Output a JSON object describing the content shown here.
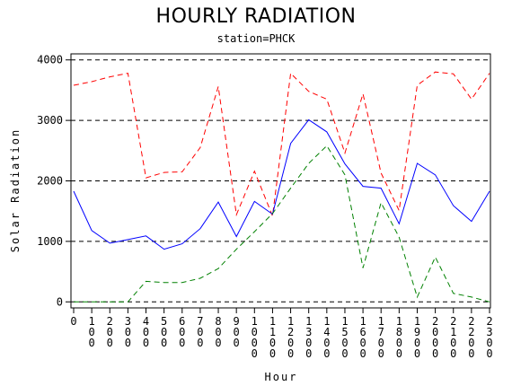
{
  "chart_data": {
    "type": "line",
    "title": "HOURLY RADIATION",
    "subtitle": "station=PHCK",
    "xlabel": "Hour",
    "ylabel": "Solar Radiation",
    "x": [
      0,
      100,
      200,
      300,
      400,
      500,
      600,
      700,
      800,
      900,
      1000,
      1100,
      1200,
      1300,
      1400,
      1500,
      1600,
      1700,
      1800,
      1900,
      2000,
      2100,
      2200,
      2300
    ],
    "x_tick_labels": [
      "0",
      "100",
      "200",
      "300",
      "400",
      "500",
      "600",
      "700",
      "800",
      "900",
      "1000",
      "1100",
      "1200",
      "1300",
      "1400",
      "1500",
      "1600",
      "1700",
      "1800",
      "1900",
      "2000",
      "2100",
      "2200",
      "2300"
    ],
    "yticks": [
      0,
      1000,
      2000,
      3000,
      4000
    ],
    "ylim": [
      -100,
      4100
    ],
    "xlim": [
      0,
      2300
    ],
    "grid": "horizontal dashed",
    "legend": "none",
    "series": [
      {
        "color": "#ff0000",
        "dash": "dashed",
        "values": [
          3580,
          3640,
          3720,
          3780,
          2050,
          2140,
          2150,
          2550,
          3560,
          1440,
          2160,
          1420,
          3780,
          3480,
          3350,
          2460,
          3440,
          2130,
          1510,
          3580,
          3800,
          3770,
          3350,
          3780
        ]
      },
      {
        "color": "#0000ff",
        "dash": "solid",
        "values": [
          1830,
          1180,
          970,
          1030,
          1090,
          870,
          960,
          1210,
          1650,
          1080,
          1660,
          1450,
          2620,
          3010,
          2810,
          2280,
          1910,
          1880,
          1290,
          2290,
          2100,
          1590,
          1330,
          1830
        ]
      },
      {
        "color": "#008000",
        "dash": "dashed",
        "values": [
          0,
          0,
          0,
          0,
          340,
          320,
          320,
          390,
          550,
          870,
          1160,
          1460,
          1880,
          2290,
          2580,
          2100,
          560,
          1640,
          1070,
          80,
          740,
          140,
          80,
          0
        ]
      }
    ]
  }
}
